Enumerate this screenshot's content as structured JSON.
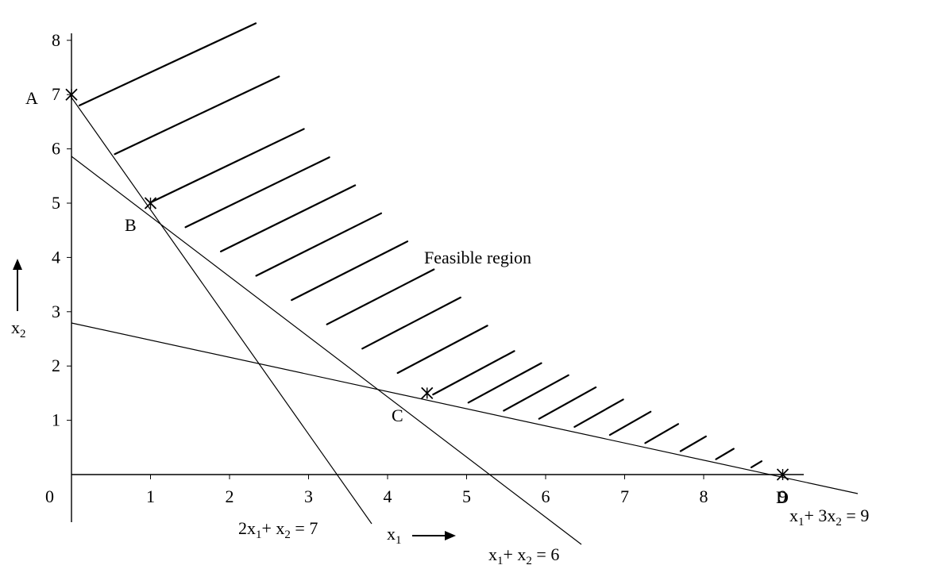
{
  "chart_data": {
    "type": "line",
    "title": "",
    "xlabel": "x1",
    "ylabel": "x2",
    "xlim": [
      0,
      9
    ],
    "ylim": [
      0,
      8
    ],
    "x_ticks": [
      1,
      2,
      3,
      4,
      5,
      6,
      7,
      8,
      9
    ],
    "y_ticks": [
      1,
      2,
      3,
      4,
      5,
      6,
      7,
      8
    ],
    "origin_label": "0",
    "constraints": [
      {
        "id": "c1",
        "label": "2x₁+ x₂ = 7",
        "a": 2,
        "b": 1,
        "c": 7
      },
      {
        "id": "c2",
        "label": "x₁+ x₂ = 6",
        "a": 1,
        "b": 1,
        "c": 6
      },
      {
        "id": "c3",
        "label": "x₁+ 3x₂ = 9",
        "a": 1,
        "b": 3,
        "c": 9
      }
    ],
    "points": [
      {
        "name": "A",
        "x": 0,
        "y": 7
      },
      {
        "name": "B",
        "x": 1,
        "y": 5
      },
      {
        "name": "C",
        "x": 4.5,
        "y": 1.5
      },
      {
        "name": "D",
        "x": 9,
        "y": 0
      }
    ],
    "feasible_region_label": "Feasible region",
    "grid": false,
    "legend": "none"
  }
}
